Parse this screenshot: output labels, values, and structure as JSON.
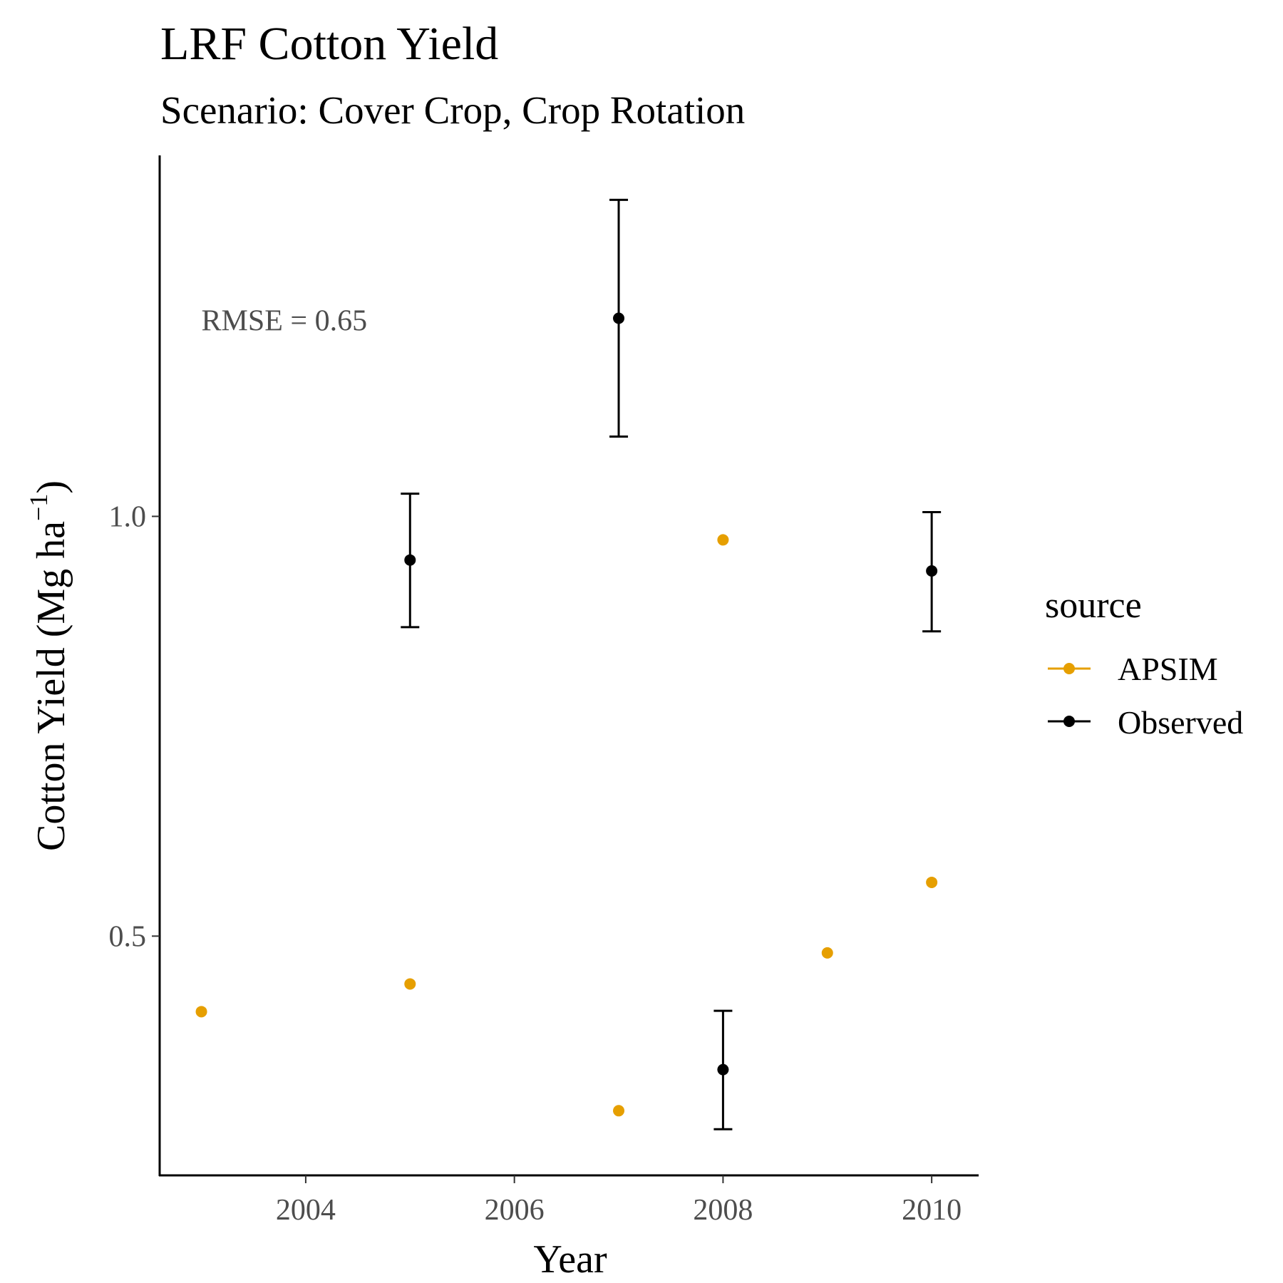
{
  "chart_data": {
    "type": "scatter",
    "title": "LRF Cotton Yield",
    "subtitle": "Scenario: Cover Crop, Crop Rotation",
    "xlabel": "Year",
    "ylabel_prefix": "Cotton Yield (Mg ha",
    "ylabel_sup": "−1",
    "ylabel_suffix": ")",
    "xlim": [
      2002.6,
      2010.45
    ],
    "ylim": [
      0.215,
      1.43
    ],
    "x_ticks": [
      2004,
      2006,
      2008,
      2010
    ],
    "x_tick_labels": [
      "2004",
      "2006",
      "2008",
      "2010"
    ],
    "y_ticks": [
      0.5,
      1.0
    ],
    "y_tick_labels": [
      "0.5",
      "1.0"
    ],
    "grid": false,
    "annotation": {
      "text": "RMSE = 0.65",
      "x": 2003.0,
      "y": 1.235
    },
    "legend": {
      "title": "source",
      "placement": "right",
      "entries": [
        {
          "label": "APSIM",
          "color": "#E69F00"
        },
        {
          "label": "Observed",
          "color": "#000000"
        }
      ]
    },
    "series": [
      {
        "name": "APSIM",
        "color": "#E69F00",
        "points": [
          {
            "x": 2003,
            "y": 0.41
          },
          {
            "x": 2005,
            "y": 0.443
          },
          {
            "x": 2007,
            "y": 0.292
          },
          {
            "x": 2008,
            "y": 0.972
          },
          {
            "x": 2009,
            "y": 0.48
          },
          {
            "x": 2010,
            "y": 0.564
          }
        ]
      },
      {
        "name": "Observed",
        "color": "#000000",
        "points": [
          {
            "x": 2005,
            "y": 0.948,
            "ymin": 0.868,
            "ymax": 1.027
          },
          {
            "x": 2007,
            "y": 1.236,
            "ymin": 1.095,
            "ymax": 1.377
          },
          {
            "x": 2008,
            "y": 0.341,
            "ymin": 0.27,
            "ymax": 0.411
          },
          {
            "x": 2010,
            "y": 0.935,
            "ymin": 0.863,
            "ymax": 1.005
          }
        ]
      }
    ]
  }
}
